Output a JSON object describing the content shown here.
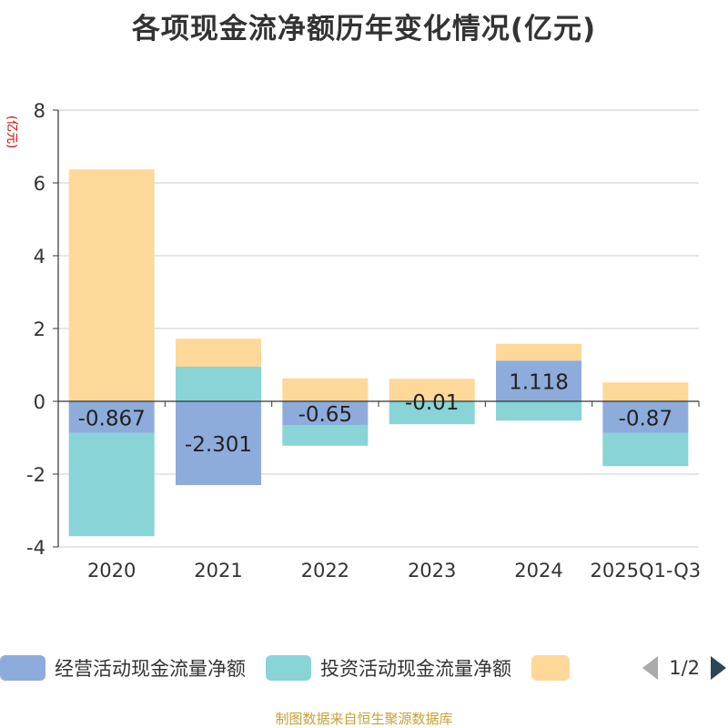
{
  "chart_data": {
    "type": "bar",
    "stacked": true,
    "title": "各项现金流净额历年变化情况(亿元)",
    "ylabel": "(亿元)",
    "categories": [
      "2020",
      "2021",
      "2022",
      "2023",
      "2024",
      "2025Q1-Q3"
    ],
    "ylim": [
      -4,
      8
    ],
    "yticks": [
      8,
      6,
      4,
      2,
      0,
      -2,
      -4
    ],
    "grid": true,
    "series": [
      {
        "name": "经营活动现金流量净额",
        "color": "#8eacdb",
        "values": [
          -0.867,
          -2.301,
          -0.65,
          -0.01,
          1.118,
          -0.87
        ],
        "labels": [
          "-0.867",
          "-2.301",
          "-0.65",
          "-0.01",
          "1.118",
          "-0.87"
        ]
      },
      {
        "name": "投资活动现金流量净额",
        "color": "#88d4d6",
        "values": [
          -2.84,
          0.95,
          -0.57,
          -0.62,
          -0.53,
          -0.91
        ]
      },
      {
        "name": "",
        "color": "#fed899",
        "values": [
          6.37,
          0.77,
          0.63,
          0.62,
          0.46,
          0.52
        ]
      }
    ],
    "legend": {
      "position": "bottom",
      "page": "1/2"
    }
  },
  "source": "制图数据来自恒生聚源数据库"
}
